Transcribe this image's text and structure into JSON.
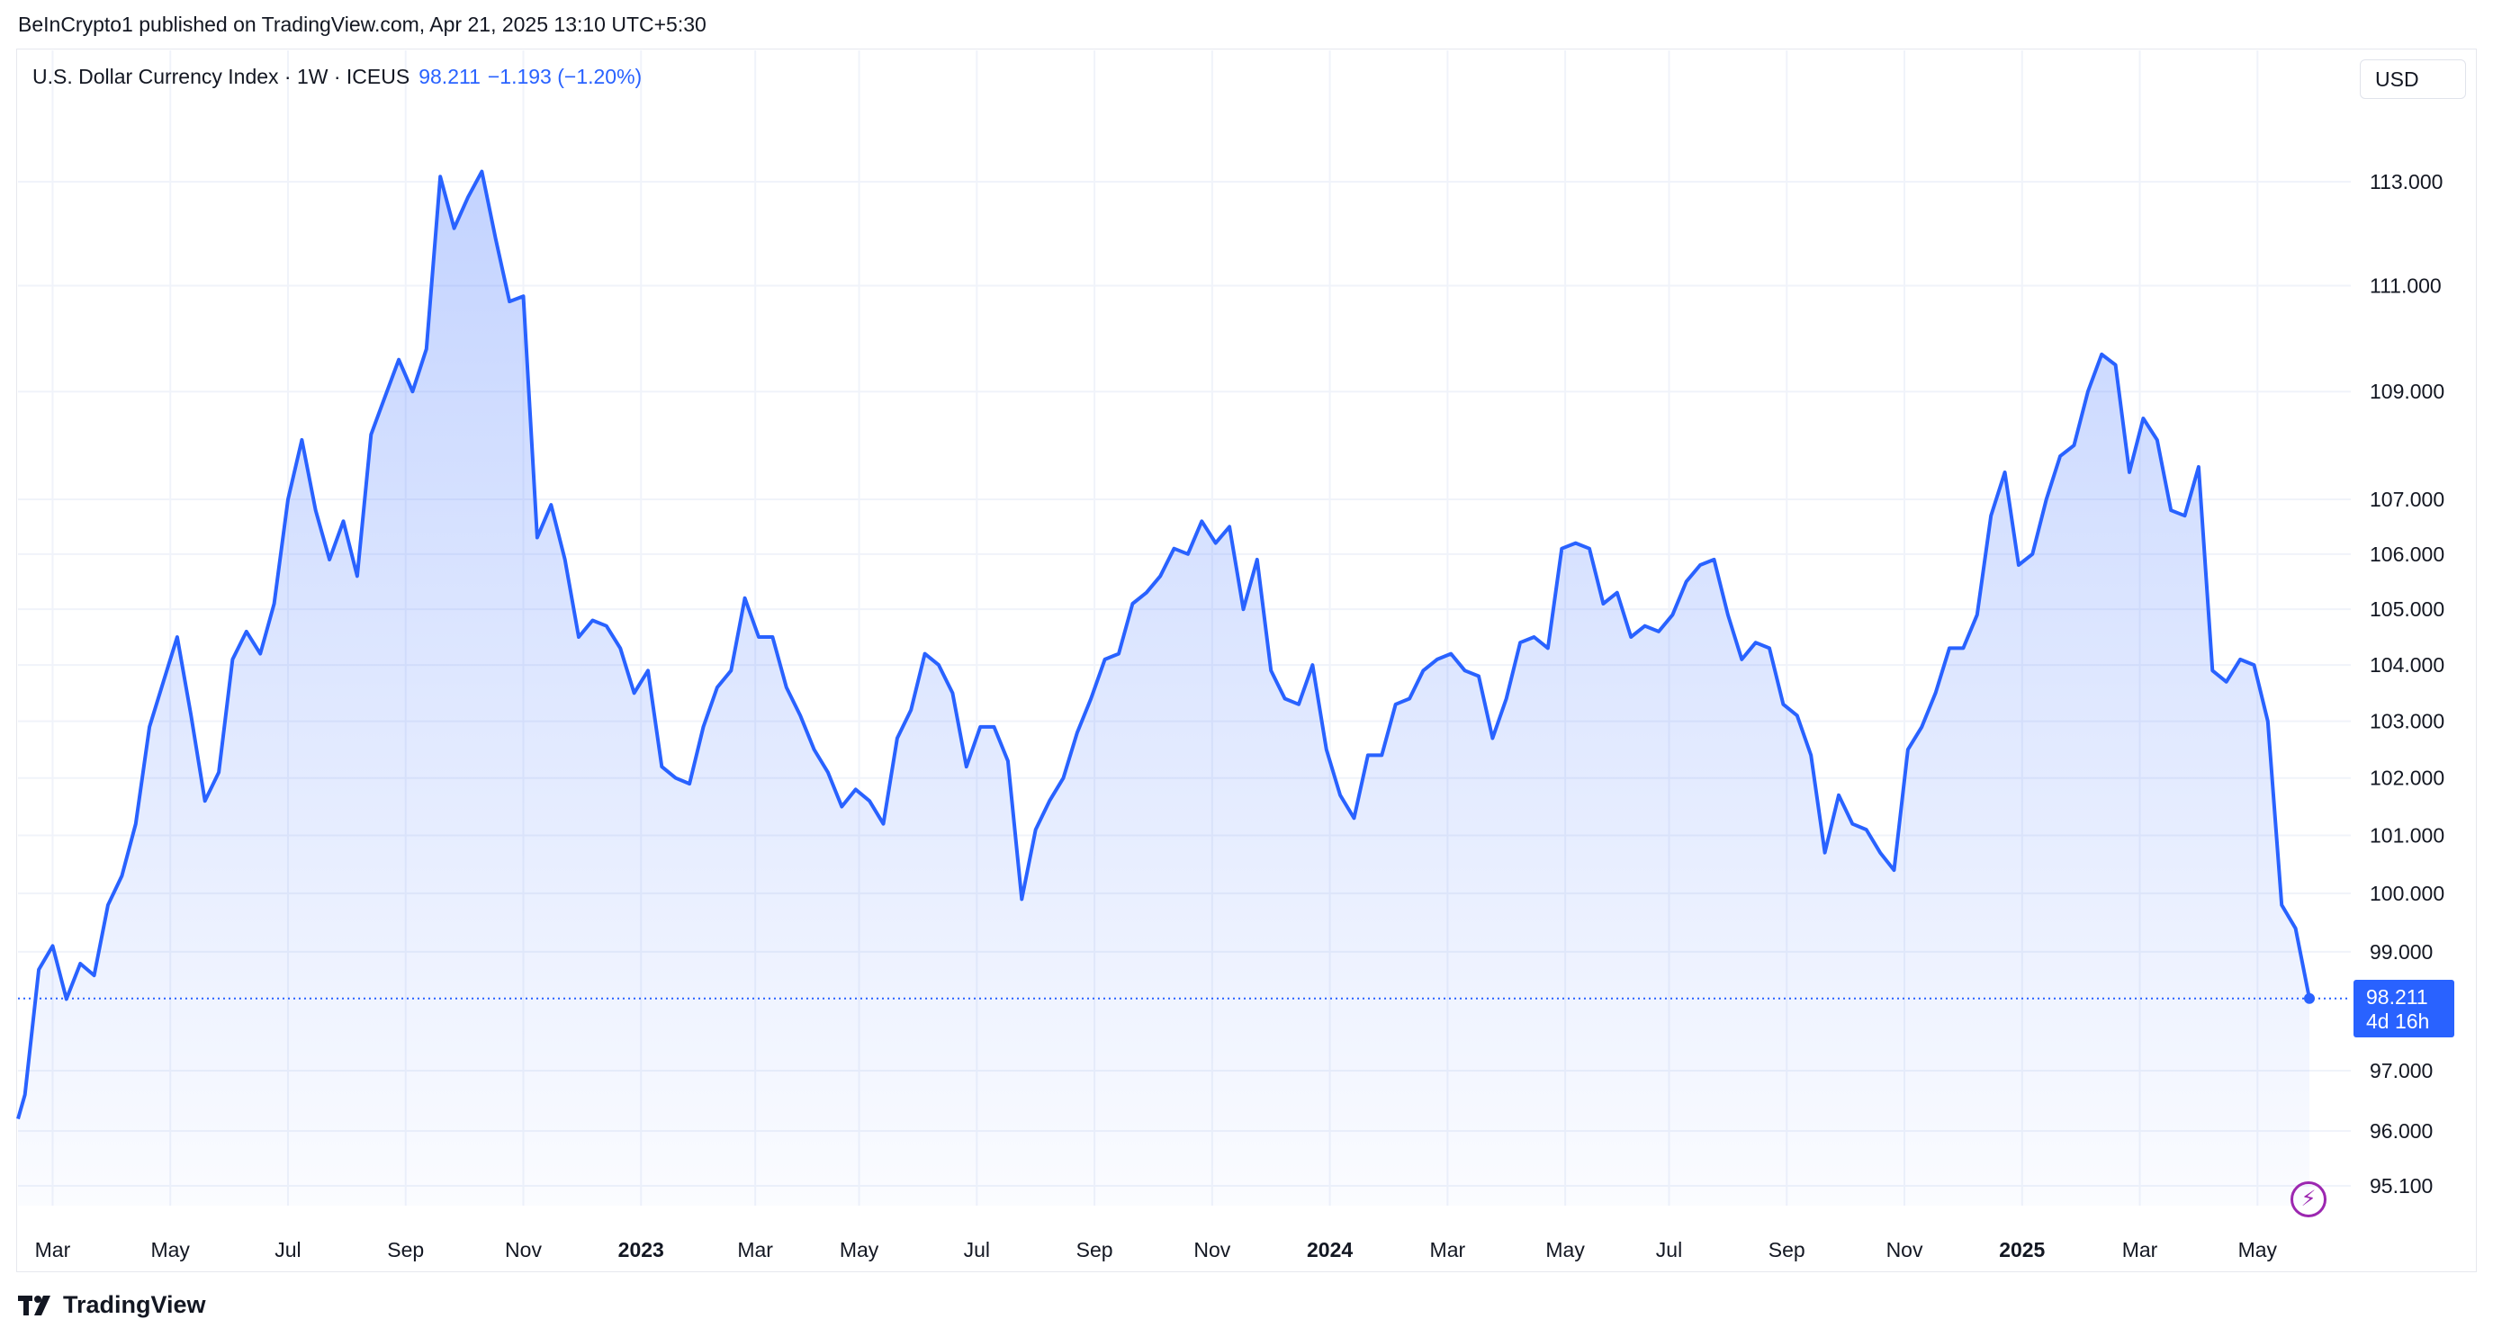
{
  "header": {
    "published_line": "BeInCrypto1 published on TradingView.com, Apr 21, 2025 13:10 UTC+5:30"
  },
  "legend": {
    "symbol": "U.S. Dollar Currency Index · 1W · ICEUS",
    "last": "98.211",
    "change": "−1.193 (−1.20%)"
  },
  "currency_button": "USD",
  "price_tag": {
    "price": "98.211",
    "countdown": "4d 16h"
  },
  "brand": "TradingView",
  "colors": {
    "line": "#2962ff",
    "accent": "#2962ff",
    "bolt": "#9c27b0"
  },
  "icons": {
    "bolt": "lightning-bolt-icon",
    "logo": "tradingview-logo-icon"
  },
  "chart_data": {
    "type": "area",
    "title": "U.S. Dollar Currency Index · 1W · ICEUS",
    "interval": "1W",
    "grid": true,
    "scale": "log",
    "x_tick_labels": [
      {
        "label": "Mar",
        "bold": false,
        "x": 2022.23
      },
      {
        "label": "May",
        "bold": false,
        "x": 2022.4
      },
      {
        "label": "Jul",
        "bold": false,
        "x": 2022.57
      },
      {
        "label": "Sep",
        "bold": false,
        "x": 2022.74
      },
      {
        "label": "Nov",
        "bold": false,
        "x": 2022.91
      },
      {
        "label": "2023",
        "bold": true,
        "x": 2023.08
      },
      {
        "label": "Mar",
        "bold": false,
        "x": 2023.245
      },
      {
        "label": "May",
        "bold": false,
        "x": 2023.395
      },
      {
        "label": "Jul",
        "bold": false,
        "x": 2023.565
      },
      {
        "label": "Sep",
        "bold": false,
        "x": 2023.735
      },
      {
        "label": "Nov",
        "bold": false,
        "x": 2023.905
      },
      {
        "label": "2024",
        "bold": true,
        "x": 2024.075
      },
      {
        "label": "Mar",
        "bold": false,
        "x": 2024.245
      },
      {
        "label": "May",
        "bold": false,
        "x": 2024.415
      },
      {
        "label": "Jul",
        "bold": false,
        "x": 2024.565
      },
      {
        "label": "Sep",
        "bold": false,
        "x": 2024.735
      },
      {
        "label": "Nov",
        "bold": false,
        "x": 2024.905
      },
      {
        "label": "2025",
        "bold": true,
        "x": 2025.075
      },
      {
        "label": "Mar",
        "bold": false,
        "x": 2025.245
      },
      {
        "label": "May",
        "bold": false,
        "x": 2025.415
      }
    ],
    "y_ticks": [
      "113.000",
      "111.000",
      "109.000",
      "107.000",
      "106.000",
      "105.000",
      "104.000",
      "103.000",
      "102.000",
      "101.000",
      "100.000",
      "99.000",
      "97.000",
      "96.000",
      "95.100"
    ],
    "series": [
      {
        "values": [
          [
            2022.18,
            96.2
          ],
          [
            2022.19,
            96.6
          ],
          [
            2022.21,
            98.7
          ],
          [
            2022.23,
            99.1
          ],
          [
            2022.25,
            98.2
          ],
          [
            2022.27,
            98.8
          ],
          [
            2022.29,
            98.6
          ],
          [
            2022.31,
            99.8
          ],
          [
            2022.33,
            100.3
          ],
          [
            2022.35,
            101.2
          ],
          [
            2022.37,
            102.9
          ],
          [
            2022.39,
            103.7
          ],
          [
            2022.41,
            104.5
          ],
          [
            2022.43,
            103.1
          ],
          [
            2022.45,
            101.6
          ],
          [
            2022.47,
            102.1
          ],
          [
            2022.49,
            104.1
          ],
          [
            2022.51,
            104.6
          ],
          [
            2022.53,
            104.2
          ],
          [
            2022.55,
            105.1
          ],
          [
            2022.57,
            107.0
          ],
          [
            2022.59,
            108.1
          ],
          [
            2022.61,
            106.8
          ],
          [
            2022.63,
            105.9
          ],
          [
            2022.65,
            106.6
          ],
          [
            2022.67,
            105.6
          ],
          [
            2022.69,
            108.2
          ],
          [
            2022.71,
            108.9
          ],
          [
            2022.73,
            109.6
          ],
          [
            2022.75,
            109.0
          ],
          [
            2022.77,
            109.8
          ],
          [
            2022.79,
            113.1
          ],
          [
            2022.81,
            112.1
          ],
          [
            2022.83,
            112.7
          ],
          [
            2022.85,
            113.2
          ],
          [
            2022.87,
            111.9
          ],
          [
            2022.89,
            110.7
          ],
          [
            2022.91,
            110.8
          ],
          [
            2022.93,
            106.3
          ],
          [
            2022.95,
            106.9
          ],
          [
            2022.97,
            105.9
          ],
          [
            2022.99,
            104.5
          ],
          [
            2023.01,
            104.8
          ],
          [
            2023.03,
            104.7
          ],
          [
            2023.05,
            104.3
          ],
          [
            2023.07,
            103.5
          ],
          [
            2023.09,
            103.9
          ],
          [
            2023.11,
            102.2
          ],
          [
            2023.13,
            102.0
          ],
          [
            2023.15,
            101.9
          ],
          [
            2023.17,
            102.9
          ],
          [
            2023.19,
            103.6
          ],
          [
            2023.21,
            103.9
          ],
          [
            2023.23,
            105.2
          ],
          [
            2023.25,
            104.5
          ],
          [
            2023.27,
            104.5
          ],
          [
            2023.29,
            103.6
          ],
          [
            2023.31,
            103.1
          ],
          [
            2023.33,
            102.5
          ],
          [
            2023.35,
            102.1
          ],
          [
            2023.37,
            101.5
          ],
          [
            2023.39,
            101.8
          ],
          [
            2023.41,
            101.6
          ],
          [
            2023.43,
            101.2
          ],
          [
            2023.45,
            102.7
          ],
          [
            2023.47,
            103.2
          ],
          [
            2023.49,
            104.2
          ],
          [
            2023.51,
            104.0
          ],
          [
            2023.53,
            103.5
          ],
          [
            2023.55,
            102.2
          ],
          [
            2023.57,
            102.9
          ],
          [
            2023.59,
            102.9
          ],
          [
            2023.61,
            102.3
          ],
          [
            2023.63,
            99.9
          ],
          [
            2023.65,
            101.1
          ],
          [
            2023.67,
            101.6
          ],
          [
            2023.69,
            102.0
          ],
          [
            2023.71,
            102.8
          ],
          [
            2023.73,
            103.4
          ],
          [
            2023.75,
            104.1
          ],
          [
            2023.77,
            104.2
          ],
          [
            2023.79,
            105.1
          ],
          [
            2023.81,
            105.3
          ],
          [
            2023.83,
            105.6
          ],
          [
            2023.85,
            106.1
          ],
          [
            2023.87,
            106.0
          ],
          [
            2023.89,
            106.6
          ],
          [
            2023.91,
            106.2
          ],
          [
            2023.93,
            106.5
          ],
          [
            2023.95,
            105.0
          ],
          [
            2023.97,
            105.9
          ],
          [
            2023.99,
            103.9
          ],
          [
            2024.01,
            103.4
          ],
          [
            2024.03,
            103.3
          ],
          [
            2024.05,
            104.0
          ],
          [
            2024.07,
            102.5
          ],
          [
            2024.09,
            101.7
          ],
          [
            2024.11,
            101.3
          ],
          [
            2024.13,
            102.4
          ],
          [
            2024.15,
            102.4
          ],
          [
            2024.17,
            103.3
          ],
          [
            2024.19,
            103.4
          ],
          [
            2024.21,
            103.9
          ],
          [
            2024.23,
            104.1
          ],
          [
            2024.25,
            104.2
          ],
          [
            2024.27,
            103.9
          ],
          [
            2024.29,
            103.8
          ],
          [
            2024.31,
            102.7
          ],
          [
            2024.33,
            103.4
          ],
          [
            2024.35,
            104.4
          ],
          [
            2024.37,
            104.5
          ],
          [
            2024.39,
            104.3
          ],
          [
            2024.41,
            106.1
          ],
          [
            2024.43,
            106.2
          ],
          [
            2024.45,
            106.1
          ],
          [
            2024.47,
            105.1
          ],
          [
            2024.49,
            105.3
          ],
          [
            2024.51,
            104.5
          ],
          [
            2024.53,
            104.7
          ],
          [
            2024.55,
            104.6
          ],
          [
            2024.57,
            104.9
          ],
          [
            2024.59,
            105.5
          ],
          [
            2024.61,
            105.8
          ],
          [
            2024.63,
            105.9
          ],
          [
            2024.65,
            104.9
          ],
          [
            2024.67,
            104.1
          ],
          [
            2024.69,
            104.4
          ],
          [
            2024.71,
            104.3
          ],
          [
            2024.73,
            103.3
          ],
          [
            2024.75,
            103.1
          ],
          [
            2024.77,
            102.4
          ],
          [
            2024.79,
            100.7
          ],
          [
            2024.81,
            101.7
          ],
          [
            2024.83,
            101.2
          ],
          [
            2024.85,
            101.1
          ],
          [
            2024.87,
            100.7
          ],
          [
            2024.89,
            100.4
          ],
          [
            2024.91,
            102.5
          ],
          [
            2024.93,
            102.9
          ],
          [
            2024.95,
            103.5
          ],
          [
            2024.97,
            104.3
          ],
          [
            2024.99,
            104.3
          ],
          [
            2025.01,
            104.9
          ],
          [
            2025.03,
            106.7
          ],
          [
            2025.05,
            107.5
          ],
          [
            2025.07,
            105.8
          ],
          [
            2025.09,
            106.0
          ],
          [
            2025.11,
            107.0
          ],
          [
            2025.13,
            107.8
          ],
          [
            2025.15,
            108.0
          ],
          [
            2025.17,
            109.0
          ],
          [
            2025.19,
            109.7
          ],
          [
            2025.21,
            109.5
          ],
          [
            2025.23,
            107.5
          ],
          [
            2025.25,
            108.5
          ],
          [
            2025.27,
            108.1
          ],
          [
            2025.29,
            106.8
          ],
          [
            2025.31,
            106.7
          ],
          [
            2025.33,
            107.6
          ],
          [
            2025.35,
            103.9
          ],
          [
            2025.37,
            103.7
          ],
          [
            2025.39,
            104.1
          ],
          [
            2025.41,
            104.0
          ],
          [
            2025.43,
            103.0
          ],
          [
            2025.45,
            99.8
          ],
          [
            2025.47,
            99.4
          ],
          [
            2025.49,
            98.211
          ]
        ]
      }
    ],
    "last_value": 98.211
  }
}
